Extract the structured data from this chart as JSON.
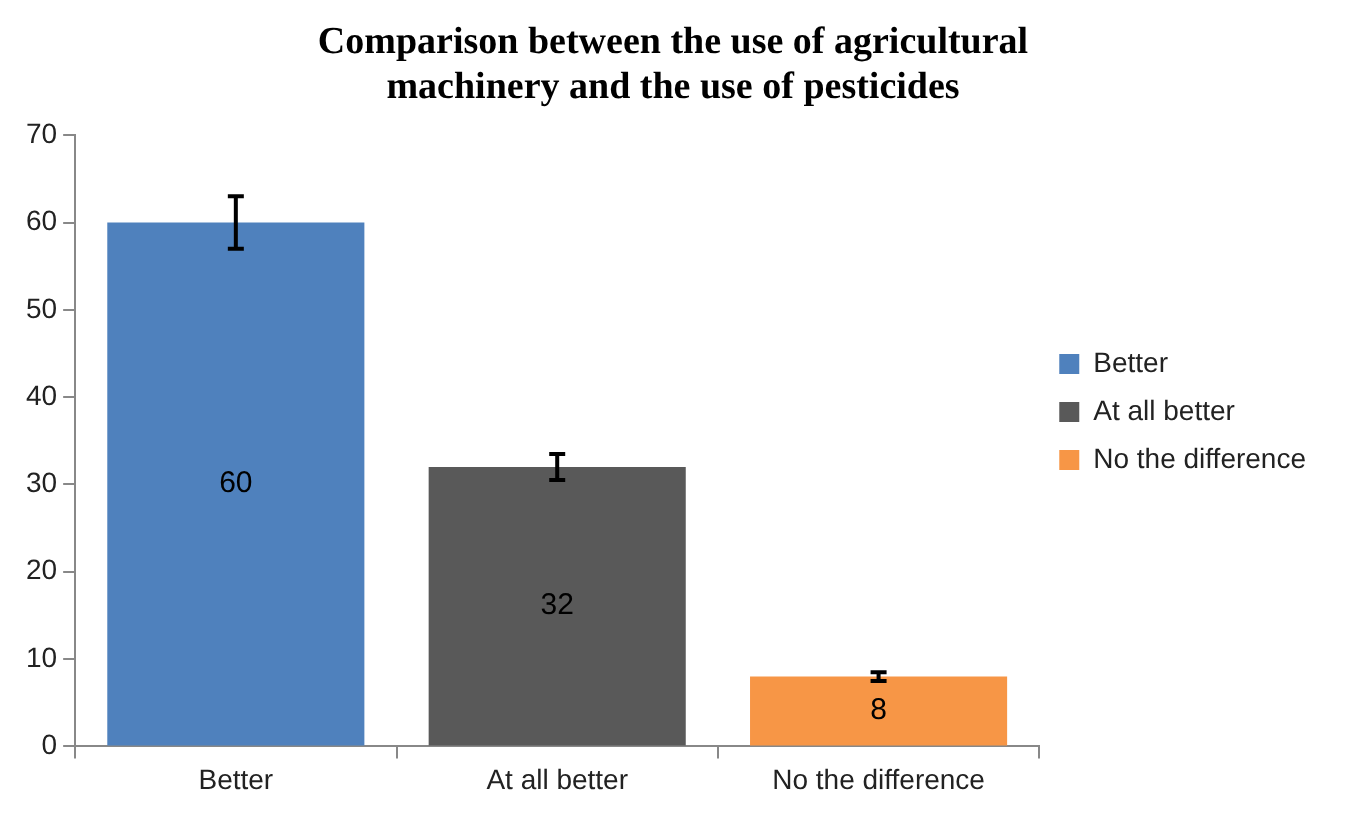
{
  "chart_data": {
    "type": "bar",
    "title": "Comparison between the use of agricultural\nmachinery and the use of pesticides",
    "categories": [
      "Better",
      "At all better",
      "No the difference"
    ],
    "series": [
      {
        "name": "Better",
        "color": "#4f81bd",
        "values": [
          60,
          null,
          null
        ],
        "errors": [
          3,
          null,
          null
        ]
      },
      {
        "name": "At all better",
        "color": "#595959",
        "values": [
          null,
          32,
          null
        ],
        "errors": [
          null,
          1.5,
          null
        ]
      },
      {
        "name": "No the difference",
        "color": "#f79646",
        "values": [
          null,
          null,
          8
        ],
        "errors": [
          null,
          null,
          0.5
        ]
      }
    ],
    "ylim": [
      0,
      70
    ],
    "yticks": [
      0,
      10,
      20,
      30,
      40,
      50,
      60,
      70
    ],
    "grid": false,
    "legend": "right",
    "data_labels": true
  }
}
